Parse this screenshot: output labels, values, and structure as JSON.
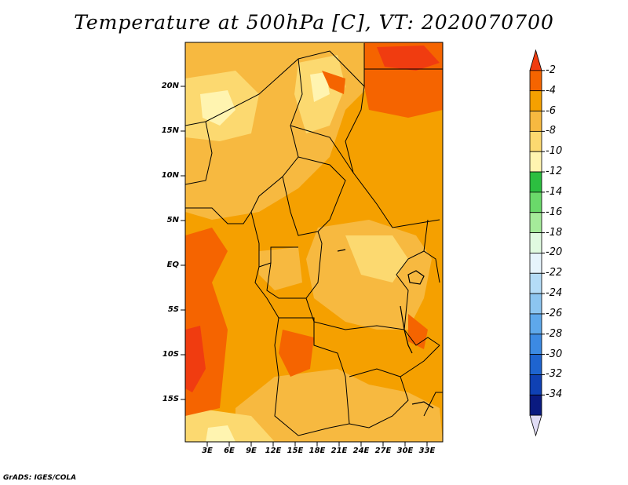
{
  "title": "Temperature at 500hPa [C], VT: 2020070700",
  "credit": "GrADS: IGES/COLA",
  "map": {
    "lat_labels": [
      "20N",
      "15N",
      "10N",
      "5N",
      "EQ",
      "5S",
      "10S",
      "15S"
    ],
    "lon_labels": [
      "3E",
      "6E",
      "9E",
      "12E",
      "15E",
      "18E",
      "21E",
      "24E",
      "27E",
      "30E",
      "33E"
    ]
  },
  "colorbar": {
    "labels": [
      "-2",
      "-4",
      "-6",
      "-8",
      "-10",
      "-12",
      "-14",
      "-16",
      "-18",
      "-20",
      "-22",
      "-24",
      "-26",
      "-28",
      "-30",
      "-32",
      "-34"
    ],
    "colors": [
      "#f03c10",
      "#f56400",
      "#f5a000",
      "#f7b940",
      "#fcd970",
      "#fff4b0",
      "#2cbf40",
      "#6ad96a",
      "#a5eb9a",
      "#e0fae0",
      "#e6f4fc",
      "#b4dcf7",
      "#8cc5f0",
      "#5ea8eb",
      "#3c8ae3",
      "#1e64d0",
      "#0f41b4",
      "#0a1a80",
      "#e0dcf5"
    ]
  }
}
